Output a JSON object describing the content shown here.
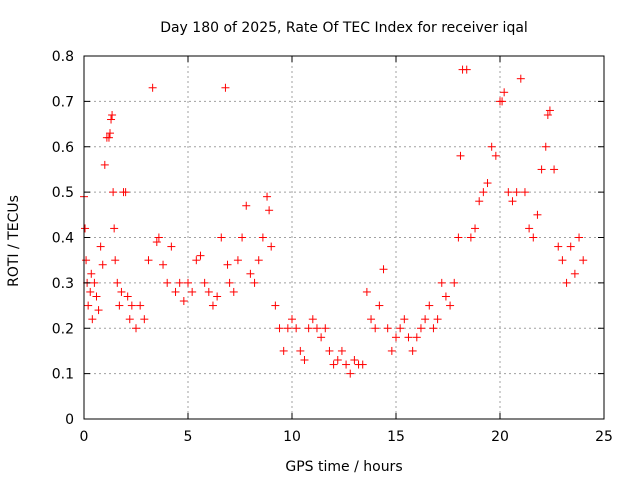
{
  "chart_data": {
    "type": "scatter",
    "title": "Day 180 of 2025, Rate Of TEC Index for receiver iqal",
    "xlabel": "GPS time / hours",
    "ylabel": "ROTI / TECUs",
    "xlim": [
      0,
      25
    ],
    "ylim": [
      0,
      0.8
    ],
    "xticks": [
      0,
      5,
      10,
      15,
      20,
      25
    ],
    "yticks": [
      0,
      0.1,
      0.2,
      0.3,
      0.4,
      0.5,
      0.6,
      0.7,
      0.8
    ],
    "grid": true,
    "legend": "none",
    "marker": "+",
    "color": "#ff0000",
    "series": [
      {
        "x": [
          0.0,
          0.05,
          0.1,
          0.15,
          0.2,
          0.3,
          0.35,
          0.4,
          0.5,
          0.6,
          0.7,
          0.8,
          0.9,
          1.0,
          1.1,
          1.2,
          1.25,
          1.3,
          1.35,
          1.4,
          1.45,
          1.5,
          1.6,
          1.7,
          1.8,
          1.9,
          2.0,
          2.1,
          2.2,
          2.3,
          2.5,
          2.7,
          2.9,
          3.1,
          3.3,
          3.5,
          3.6,
          3.8,
          4.0,
          4.2,
          4.4,
          4.6,
          4.8,
          5.0,
          5.2,
          5.4,
          5.6,
          5.8,
          6.0,
          6.2,
          6.4,
          6.6,
          6.8,
          6.9,
          7.0,
          7.2,
          7.4,
          7.6,
          7.8,
          8.0,
          8.2,
          8.4,
          8.6,
          8.8,
          8.9,
          9.0,
          9.2,
          9.4,
          9.6,
          9.8,
          10.0,
          10.2,
          10.4,
          10.6,
          10.8,
          11.0,
          11.2,
          11.4,
          11.6,
          11.8,
          12.0,
          12.2,
          12.4,
          12.6,
          12.8,
          13.0,
          13.2,
          13.4,
          13.6,
          13.8,
          14.0,
          14.2,
          14.4,
          14.6,
          14.8,
          15.0,
          15.2,
          15.4,
          15.6,
          15.8,
          16.0,
          16.2,
          16.4,
          16.6,
          16.8,
          17.0,
          17.2,
          17.4,
          17.6,
          17.8,
          18.0,
          18.1,
          18.2,
          18.4,
          18.6,
          18.8,
          19.0,
          19.2,
          19.4,
          19.6,
          19.8,
          20.0,
          20.1,
          20.2,
          20.4,
          20.6,
          20.8,
          21.0,
          21.2,
          21.4,
          21.6,
          21.8,
          22.0,
          22.2,
          22.3,
          22.4,
          22.6,
          22.8,
          23.0,
          23.2,
          23.4,
          23.6,
          23.8,
          24.0
        ],
        "y": [
          0.49,
          0.42,
          0.35,
          0.3,
          0.25,
          0.28,
          0.32,
          0.22,
          0.3,
          0.27,
          0.24,
          0.38,
          0.34,
          0.56,
          0.62,
          0.62,
          0.63,
          0.66,
          0.67,
          0.5,
          0.42,
          0.35,
          0.3,
          0.25,
          0.28,
          0.5,
          0.5,
          0.27,
          0.22,
          0.25,
          0.2,
          0.25,
          0.22,
          0.35,
          0.73,
          0.39,
          0.4,
          0.34,
          0.3,
          0.38,
          0.28,
          0.3,
          0.26,
          0.3,
          0.28,
          0.35,
          0.36,
          0.3,
          0.28,
          0.25,
          0.27,
          0.4,
          0.73,
          0.34,
          0.3,
          0.28,
          0.35,
          0.4,
          0.47,
          0.32,
          0.3,
          0.35,
          0.4,
          0.49,
          0.46,
          0.38,
          0.25,
          0.2,
          0.15,
          0.2,
          0.22,
          0.2,
          0.15,
          0.13,
          0.2,
          0.22,
          0.2,
          0.18,
          0.2,
          0.15,
          0.12,
          0.13,
          0.15,
          0.12,
          0.1,
          0.13,
          0.12,
          0.12,
          0.28,
          0.22,
          0.2,
          0.25,
          0.33,
          0.2,
          0.15,
          0.18,
          0.2,
          0.22,
          0.18,
          0.15,
          0.18,
          0.2,
          0.22,
          0.25,
          0.2,
          0.22,
          0.3,
          0.27,
          0.25,
          0.3,
          0.4,
          0.58,
          0.77,
          0.77,
          0.4,
          0.42,
          0.48,
          0.5,
          0.52,
          0.6,
          0.58,
          0.7,
          0.7,
          0.72,
          0.5,
          0.48,
          0.5,
          0.75,
          0.5,
          0.42,
          0.4,
          0.45,
          0.55,
          0.6,
          0.67,
          0.68,
          0.55,
          0.38,
          0.35,
          0.3,
          0.38,
          0.32,
          0.4,
          0.35
        ]
      }
    ]
  }
}
